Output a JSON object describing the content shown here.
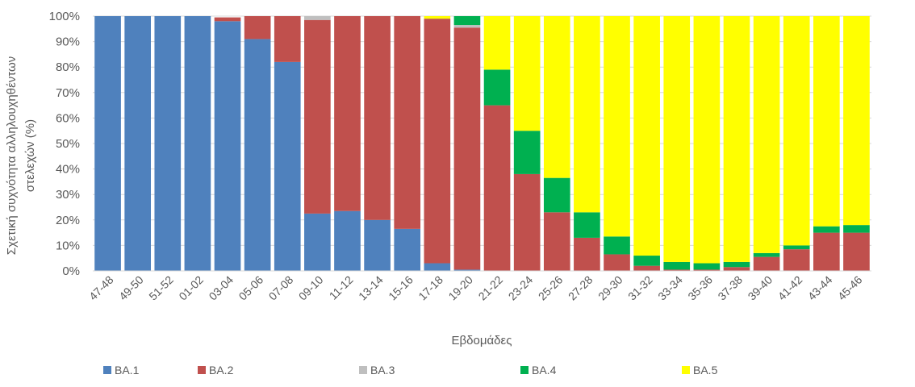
{
  "chart_data": {
    "type": "bar",
    "stacked": true,
    "xlabel": "Εβδομάδες",
    "ylabel_line1": "Σχετική συχνότητα αλληλουχηθέντων",
    "ylabel_line2": "στελεχών (%)",
    "ylim": [
      0,
      100
    ],
    "yticks": [
      "0%",
      "10%",
      "20%",
      "30%",
      "40%",
      "50%",
      "60%",
      "70%",
      "80%",
      "90%",
      "100%"
    ],
    "categories": [
      "47-48",
      "49-50",
      "51-52",
      "01-02",
      "03-04",
      "05-06",
      "07-08",
      "09-10",
      "11-12",
      "13-14",
      "15-16",
      "17-18",
      "19-20",
      "21-22",
      "23-24",
      "25-26",
      "27-28",
      "29-30",
      "31-32",
      "33-34",
      "35-36",
      "37-38",
      "39-40",
      "41-42",
      "43-44",
      "45-46"
    ],
    "series": [
      {
        "name": "BA.1",
        "color": "#4f81bd",
        "values": [
          100,
          100,
          100,
          100,
          98,
          91,
          82,
          22.5,
          23.5,
          20,
          16.5,
          3,
          0.5,
          0,
          0,
          0,
          0,
          0,
          0,
          0,
          0,
          0,
          0,
          0,
          0,
          0
        ]
      },
      {
        "name": "BA.2",
        "color": "#c0504d",
        "values": [
          0,
          0,
          0,
          0,
          1.5,
          9,
          18,
          76,
          76.5,
          80,
          83.5,
          96,
          95,
          65,
          38,
          23,
          13,
          6.5,
          2,
          0.5,
          0.5,
          1.5,
          5.5,
          8.5,
          15,
          15
        ]
      },
      {
        "name": "BA.3",
        "color": "#bfbfbf",
        "values": [
          0,
          0,
          0,
          0,
          0,
          0,
          0,
          1.5,
          0,
          0,
          0,
          0,
          1,
          0,
          0,
          0,
          0,
          0,
          0,
          0,
          0,
          0,
          0,
          0,
          0,
          0
        ]
      },
      {
        "name": "BA.4",
        "color": "#00b050",
        "values": [
          0,
          0,
          0,
          0,
          0,
          0,
          0,
          0,
          0,
          0,
          0,
          0,
          3.5,
          14,
          17,
          13.5,
          10,
          7,
          4,
          3,
          2.5,
          2,
          1.5,
          1.5,
          2.5,
          3
        ]
      },
      {
        "name": "BA.5",
        "color": "#ffff00",
        "values": [
          0,
          0,
          0,
          0,
          0,
          0,
          0,
          0,
          0,
          0,
          0,
          1,
          0,
          21,
          45,
          63.5,
          77,
          86.5,
          94,
          96.5,
          97,
          96.5,
          93,
          90,
          82.5,
          82
        ]
      }
    ],
    "legend_position": "bottom",
    "grid": true
  }
}
